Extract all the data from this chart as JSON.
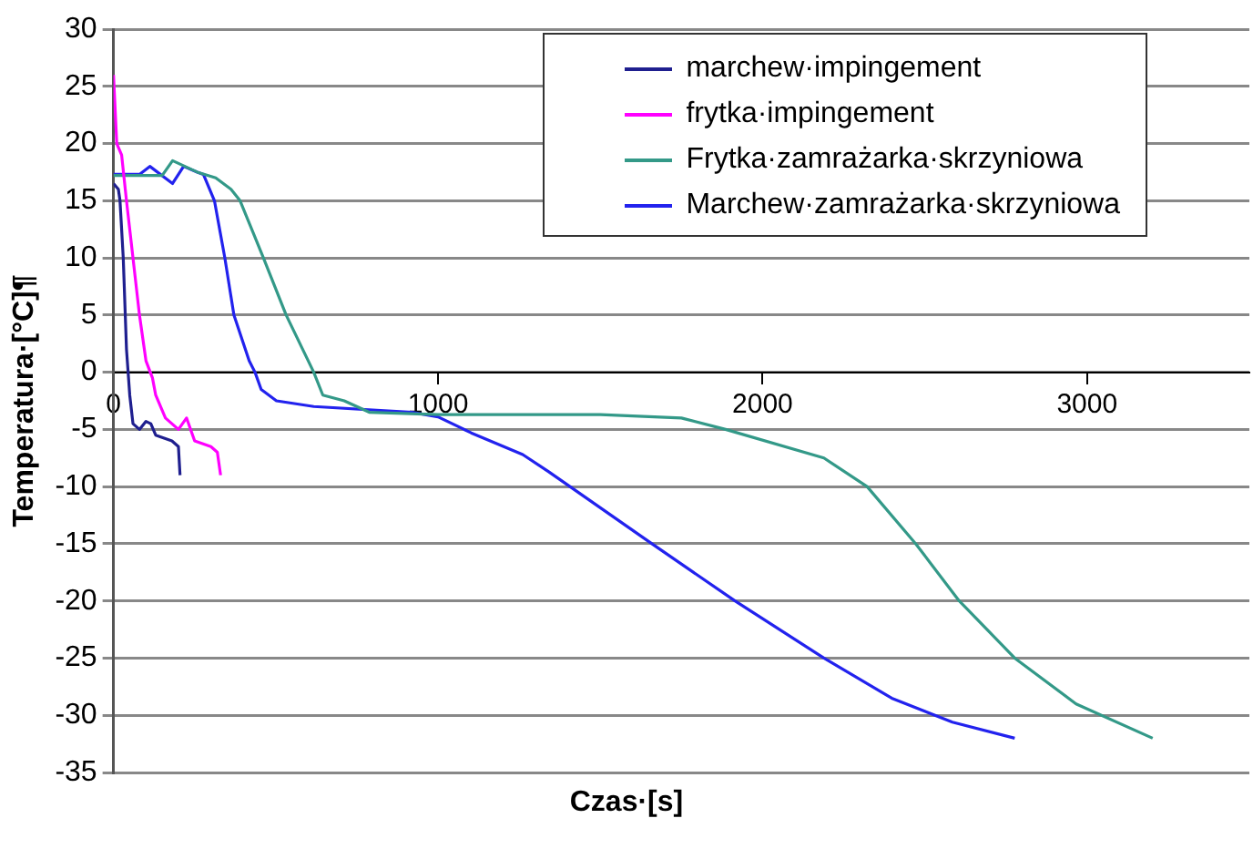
{
  "chart_data": {
    "type": "line",
    "xlabel": "Czas·[s]",
    "ylabel": "Temperatura·[°C]¶",
    "xlim": [
      0,
      3500
    ],
    "xticks": [
      0,
      1000,
      2000,
      3000
    ],
    "ylim": [
      -35,
      30
    ],
    "yticks": [
      -35,
      -30,
      -25,
      -20,
      -15,
      -10,
      -5,
      0,
      5,
      10,
      15,
      20,
      25,
      30
    ],
    "grid": "y",
    "legend": "top right",
    "marker": "none",
    "series": [
      {
        "name": "marchew·impingement",
        "color": "#1f1f8f",
        "x": [
          0,
          15,
          20,
          30,
          40,
          50,
          60,
          80,
          100,
          115,
          130,
          180,
          200,
          205
        ],
        "values": [
          16.5,
          16,
          15,
          10,
          2,
          -2,
          -4.5,
          -5,
          -4.3,
          -4.5,
          -5.5,
          -6,
          -6.5,
          -9
        ]
      },
      {
        "name": "frytka·impingement",
        "color": "#ff00ff",
        "x": [
          0,
          10,
          25,
          40,
          60,
          80,
          100,
          120,
          130,
          160,
          200,
          225,
          250,
          300,
          320,
          330
        ],
        "values": [
          26,
          20,
          19,
          15,
          10,
          5,
          1,
          -0.5,
          -2,
          -4,
          -5,
          -4,
          -6,
          -6.5,
          -7,
          -9
        ]
      },
      {
        "name": "Frytka·zamrażarka·skrzyniowa",
        "color": "#339988",
        "x": [
          0,
          150,
          182,
          258,
          315,
          362,
          390,
          462,
          532,
          617,
          645,
          711,
          788,
          1000,
          1500,
          1750,
          1886,
          2189,
          2322,
          2472,
          2606,
          2777,
          2966,
          3202
        ],
        "values": [
          17.2,
          17.2,
          18.5,
          17.5,
          17,
          16,
          15,
          10,
          5,
          0,
          -2,
          -2.5,
          -3.5,
          -3.7,
          -3.7,
          -4,
          -5,
          -7.5,
          -10,
          -15,
          -20,
          -25,
          -29,
          -32
        ]
      },
      {
        "name": "Marchew·zamrażarka·skrzyniowa",
        "color": "#2222ee",
        "x": [
          0,
          80,
          112,
          182,
          216,
          258,
          277,
          311,
          343,
          371,
          418,
          436,
          455,
          502,
          617,
          920,
          1000,
          1102,
          1261,
          1341,
          1659,
          1915,
          2189,
          2398,
          2585,
          2777
        ],
        "values": [
          17.3,
          17.3,
          18,
          16.5,
          18,
          17.5,
          17.3,
          15,
          10,
          5,
          1,
          0,
          -1.5,
          -2.5,
          -3,
          -3.5,
          -3.9,
          -5.3,
          -7.2,
          -8.7,
          -15,
          -20,
          -25,
          -28.5,
          -30.6,
          -32
        ]
      }
    ]
  }
}
